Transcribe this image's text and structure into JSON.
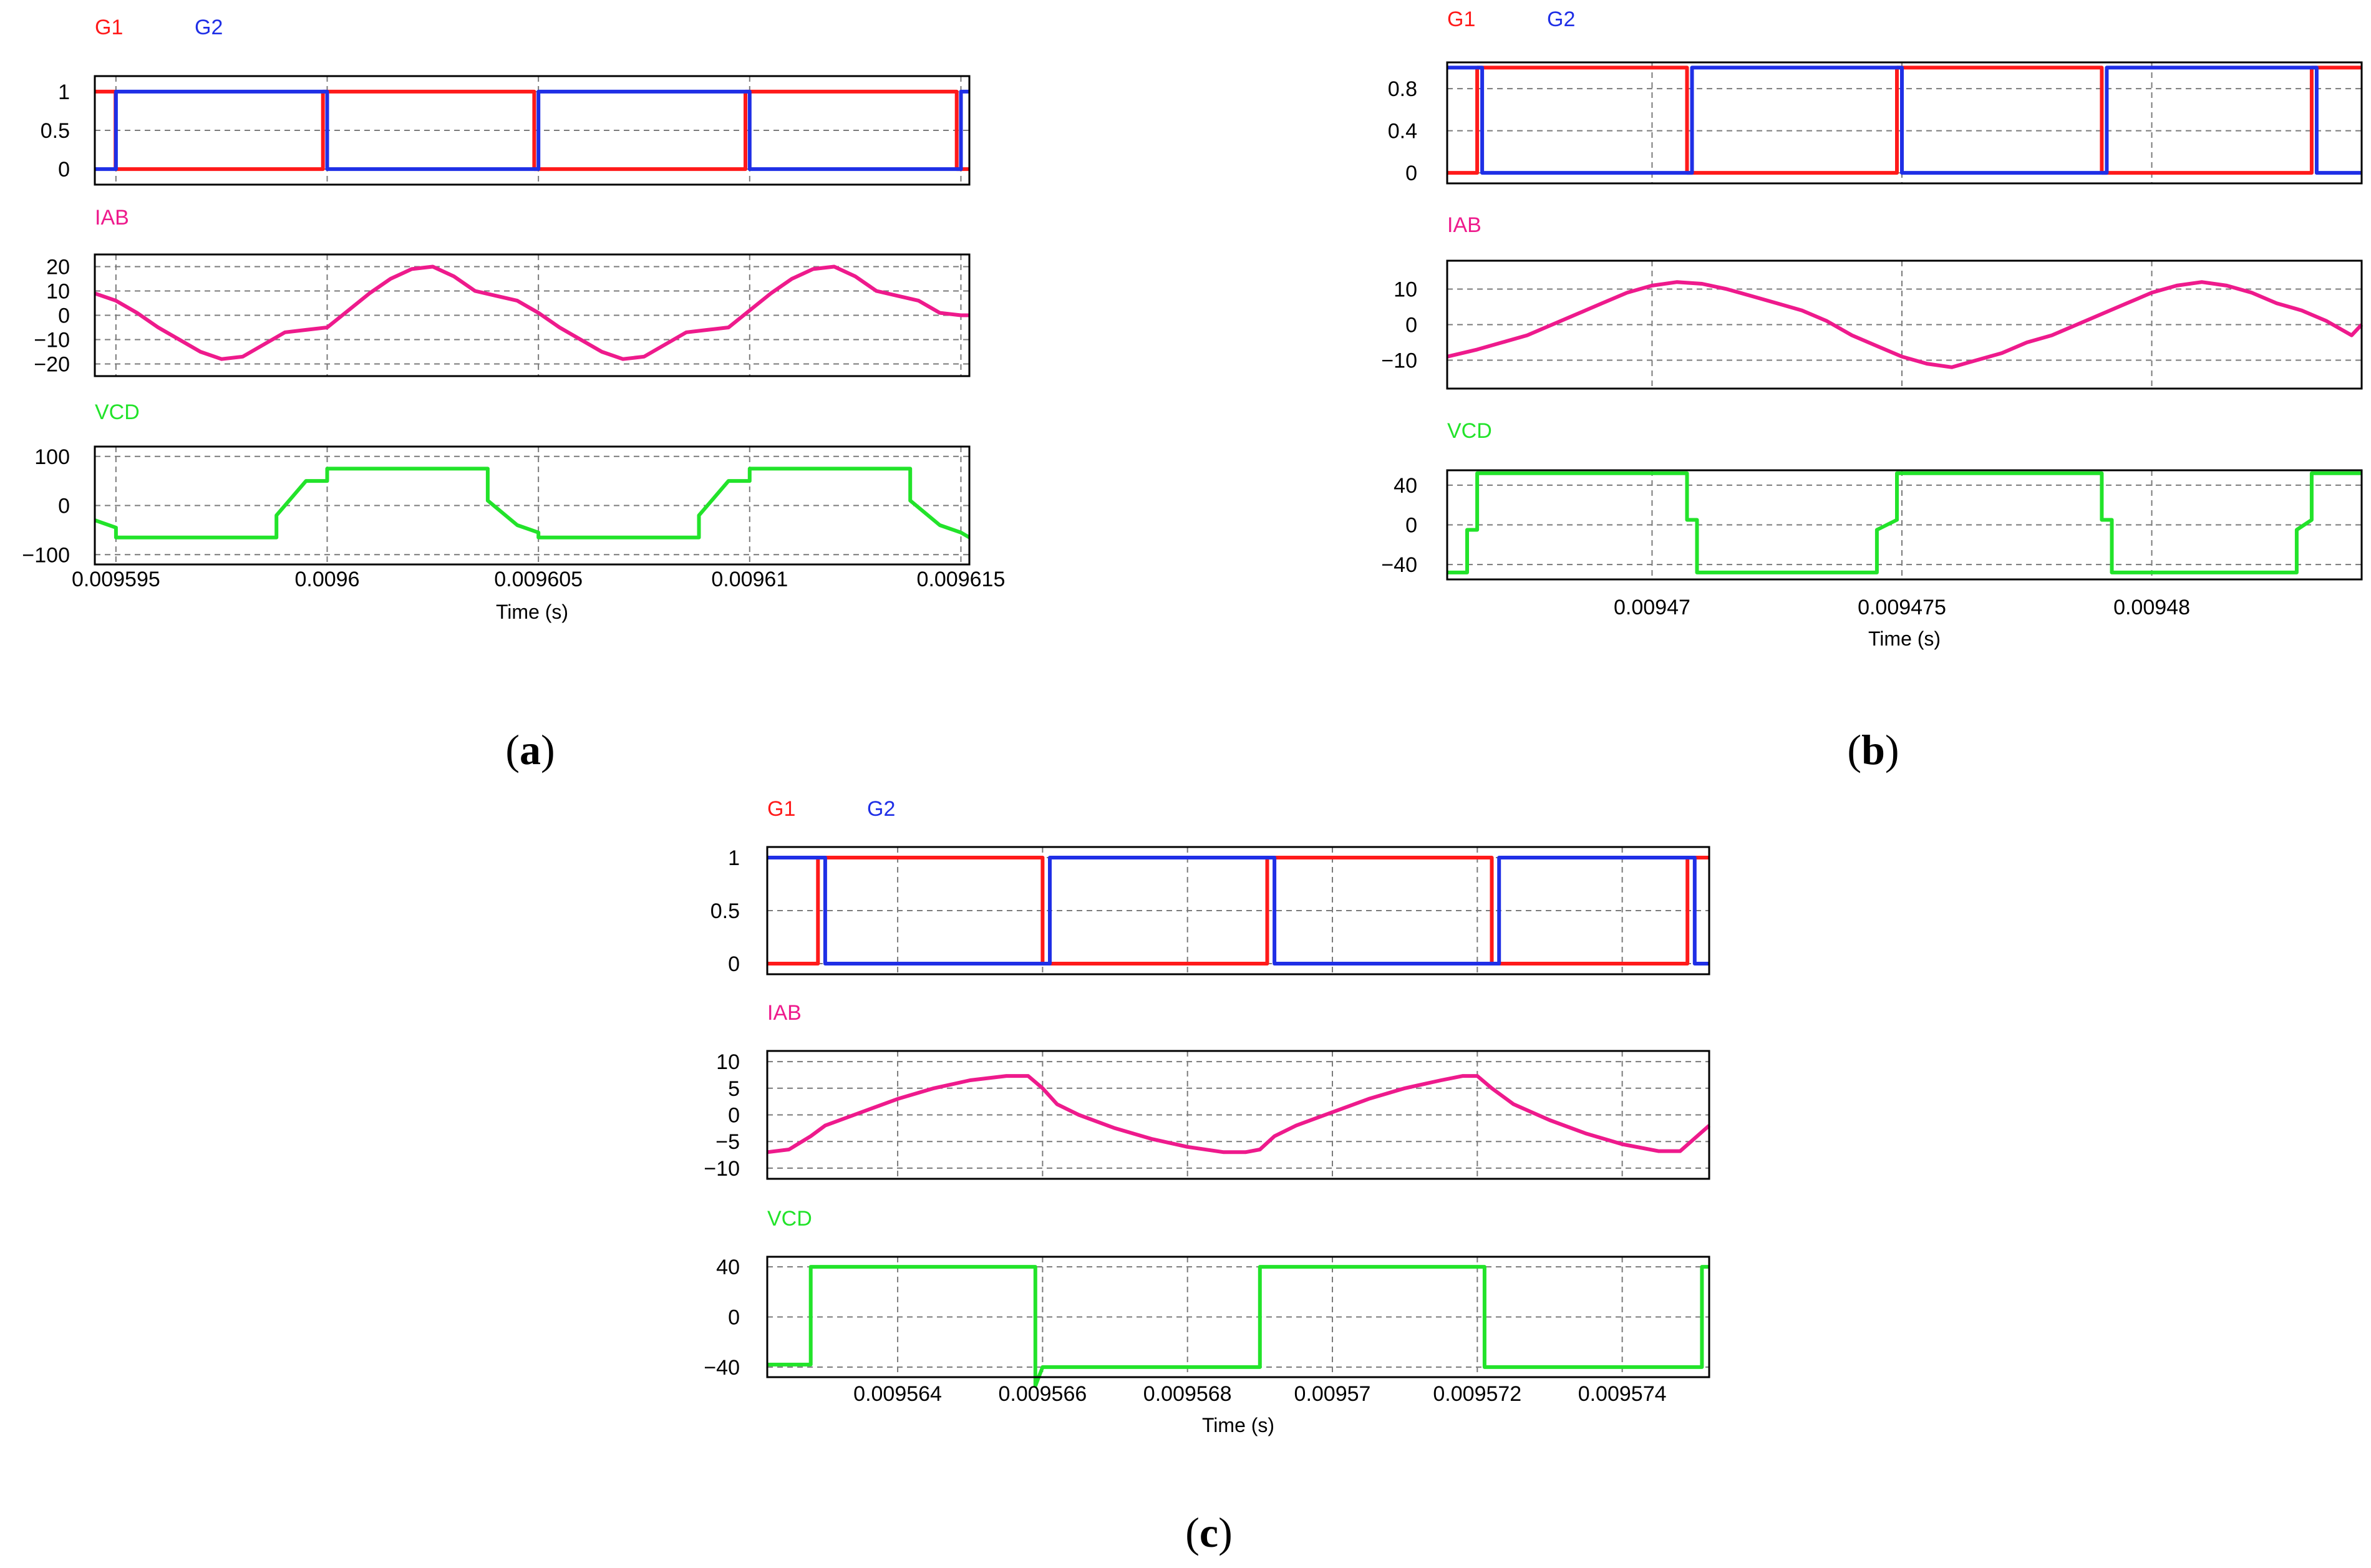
{
  "colors": {
    "g1": "#ff1a1a",
    "g2": "#1f2fe6",
    "iab": "#ee1a8c",
    "vcd": "#22e32a",
    "axis": "#000000",
    "grid": "#7a7a7a"
  },
  "xlabel": "Time (s)",
  "chart_data": [
    {
      "type": "line",
      "panel_id": "a",
      "caption": {
        "open": "(",
        "letter": "a",
        "close": ")"
      },
      "xlim": [
        0.0095945,
        0.0096152
      ],
      "x_ticks": [
        0.009595,
        0.0096,
        0.009605,
        0.00961,
        0.009615
      ],
      "x_tick_labels": [
        "0.009595",
        "0.0096",
        "0.009605",
        "0.00961",
        "0.009615"
      ],
      "xlabel": "Time (s)",
      "subplots": [
        {
          "kind": "gate",
          "ylim": [
            -0.2,
            1.2
          ],
          "y_ticks": [
            0,
            0.5,
            1
          ],
          "y_tick_labels": [
            "0",
            "0.5",
            "1"
          ],
          "legend": [
            "G1",
            "G2"
          ],
          "series": [
            {
              "name": "G1",
              "color": "#ff1a1a",
              "x": [
                0.0095945,
                0.00959499,
                0.00959499,
                0.0095999,
                0.0095999,
                0.0096049,
                0.0096049,
                0.0096099,
                0.0096099,
                0.0096149,
                0.0096149,
                0.0096152
              ],
              "y": [
                1,
                1,
                0,
                0,
                1,
                1,
                0,
                0,
                1,
                1,
                0,
                0
              ]
            },
            {
              "name": "G2",
              "color": "#1f2fe6",
              "x": [
                0.0095945,
                0.009595,
                0.009595,
                0.0096,
                0.0096,
                0.009605,
                0.009605,
                0.00961,
                0.00961,
                0.009615,
                0.009615,
                0.0096152
              ],
              "y": [
                0,
                0,
                1,
                1,
                0,
                0,
                1,
                1,
                0,
                0,
                1,
                1
              ]
            }
          ]
        },
        {
          "kind": "wave",
          "ylim": [
            -25,
            25
          ],
          "y_ticks": [
            -20,
            -10,
            0,
            10,
            20
          ],
          "y_tick_labels": [
            "−20",
            "−10",
            "0",
            "10",
            "20"
          ],
          "legend": [
            "IAB"
          ],
          "series": [
            {
              "name": "IAB",
              "color": "#ee1a8c",
              "x": [
                0.0095945,
                0.009595,
                0.0095955,
                0.009596,
                0.0095965,
                0.009597,
                0.0095975,
                0.009598,
                0.0095985,
                0.009599,
                0.0095995,
                0.0096,
                0.0096005,
                0.009601,
                0.0096015,
                0.009602,
                0.0096025,
                0.009603,
                0.0096035,
                0.009604,
                0.0096045,
                0.009605,
                0.0096055,
                0.009606,
                0.0096065,
                0.009607,
                0.0096075,
                0.009608,
                0.0096085,
                0.009609,
                0.0096095,
                0.00961,
                0.0096105,
                0.009611,
                0.0096115,
                0.009612,
                0.0096125,
                0.009613,
                0.0096135,
                0.009614,
                0.0096145,
                0.009615,
                0.0096152
              ],
              "y": [
                9,
                6,
                1,
                -5,
                -10,
                -15,
                -18,
                -17,
                -12,
                -7,
                -6,
                -5,
                2,
                9,
                15,
                19,
                20,
                16,
                10,
                8,
                6,
                1,
                -5,
                -10,
                -15,
                -18,
                -17,
                -12,
                -7,
                -6,
                -5,
                2,
                9,
                15,
                19,
                20,
                16,
                10,
                8,
                6,
                1,
                0,
                0
              ]
            }
          ]
        },
        {
          "kind": "wave",
          "ylim": [
            -120,
            120
          ],
          "y_ticks": [
            -100,
            0,
            100
          ],
          "y_tick_labels": [
            "−100",
            "0",
            "100"
          ],
          "legend": [
            "VCD"
          ],
          "series": [
            {
              "name": "VCD",
              "color": "#22e32a",
              "x": [
                0.0095945,
                0.009595,
                0.009595,
                0.0095988,
                0.0095988,
                0.0095995,
                0.0096,
                0.0096,
                0.0096038,
                0.0096038,
                0.0096045,
                0.009605,
                0.009605,
                0.0096088,
                0.0096088,
                0.0096095,
                0.00961,
                0.00961,
                0.0096138,
                0.0096138,
                0.0096145,
                0.009615,
                0.0096152
              ],
              "y": [
                -30,
                -45,
                -65,
                -65,
                -20,
                50,
                50,
                75,
                75,
                10,
                -40,
                -55,
                -65,
                -65,
                -20,
                50,
                50,
                75,
                75,
                10,
                -40,
                -55,
                -65
              ]
            }
          ]
        }
      ]
    },
    {
      "type": "line",
      "panel_id": "b",
      "caption": {
        "open": "(",
        "letter": "b",
        "close": ")"
      },
      "xlim": [
        0.0094659,
        0.0094842
      ],
      "x_ticks": [
        0.00947,
        0.009475,
        0.00948
      ],
      "x_tick_labels": [
        "0.00947",
        "0.009475",
        "0.00948"
      ],
      "xlabel": "Time (s)",
      "subplots": [
        {
          "kind": "gate",
          "ylim": [
            -0.1,
            1.05
          ],
          "y_ticks": [
            0,
            0.4,
            0.8
          ],
          "y_tick_labels": [
            "0",
            "0.4",
            "0.8"
          ],
          "legend": [
            "G1",
            "G2"
          ],
          "series": [
            {
              "name": "G1",
              "color": "#ff1a1a",
              "x": [
                0.0094659,
                0.0094665,
                0.0094665,
                0.0094707,
                0.0094707,
                0.0094749,
                0.0094749,
                0.009479,
                0.009479,
                0.0094832,
                0.0094832,
                0.0094842
              ],
              "y": [
                0,
                0,
                1,
                1,
                0,
                0,
                1,
                1,
                0,
                0,
                1,
                1
              ]
            },
            {
              "name": "G2",
              "color": "#1f2fe6",
              "x": [
                0.0094659,
                0.0094666,
                0.0094666,
                0.0094708,
                0.0094708,
                0.009475,
                0.009475,
                0.0094791,
                0.0094791,
                0.0094833,
                0.0094833,
                0.0094842
              ],
              "y": [
                1,
                1,
                0,
                0,
                1,
                1,
                0,
                0,
                1,
                1,
                0,
                0
              ]
            }
          ]
        },
        {
          "kind": "wave",
          "ylim": [
            -18,
            18
          ],
          "y_ticks": [
            -10,
            0,
            10
          ],
          "y_tick_labels": [
            "−10",
            "0",
            "10"
          ],
          "legend": [
            "IAB"
          ],
          "series": [
            {
              "name": "IAB",
              "color": "#ee1a8c",
              "x": [
                0.0094659,
                0.0094665,
                0.009467,
                0.0094675,
                0.009468,
                0.0094685,
                0.009469,
                0.0094695,
                0.00947,
                0.0094705,
                0.009471,
                0.0094715,
                0.009472,
                0.0094725,
                0.009473,
                0.0094735,
                0.009474,
                0.0094745,
                0.009475,
                0.0094755,
                0.009476,
                0.0094765,
                0.009477,
                0.0094775,
                0.009478,
                0.0094785,
                0.009479,
                0.0094795,
                0.00948,
                0.0094805,
                0.009481,
                0.0094815,
                0.009482,
                0.0094825,
                0.009483,
                0.0094835,
                0.009484,
                0.0094842
              ],
              "y": [
                -9,
                -7,
                -5,
                -3,
                0,
                3,
                6,
                9,
                11,
                12,
                11.5,
                10,
                8,
                6,
                4,
                1,
                -3,
                -6,
                -9,
                -11,
                -12,
                -10,
                -8,
                -5,
                -3,
                0,
                3,
                6,
                9,
                11,
                12,
                11,
                9,
                6,
                4,
                1,
                -3,
                0
              ]
            }
          ]
        },
        {
          "kind": "wave",
          "ylim": [
            -55,
            55
          ],
          "y_ticks": [
            -40,
            0,
            40
          ],
          "y_tick_labels": [
            "−40",
            "0",
            "40"
          ],
          "legend": [
            "VCD"
          ],
          "series": [
            {
              "name": "VCD",
              "color": "#22e32a",
              "x": [
                0.0094659,
                0.0094663,
                0.0094663,
                0.0094665,
                0.0094665,
                0.0094707,
                0.0094707,
                0.0094709,
                0.0094709,
                0.0094745,
                0.0094745,
                0.0094749,
                0.0094749,
                0.009479,
                0.009479,
                0.0094792,
                0.0094792,
                0.0094829,
                0.0094829,
                0.0094832,
                0.0094832,
                0.0094842
              ],
              "y": [
                -48,
                -48,
                -5,
                -5,
                52,
                52,
                5,
                5,
                -48,
                -48,
                -5,
                5,
                52,
                52,
                5,
                5,
                -48,
                -48,
                -5,
                5,
                52,
                52
              ]
            }
          ]
        }
      ]
    },
    {
      "type": "line",
      "panel_id": "c",
      "caption": {
        "open": "(",
        "letter": "c",
        "close": ")"
      },
      "xlim": [
        0.0095622,
        0.0095752
      ],
      "x_ticks": [
        0.009564,
        0.009566,
        0.009568,
        0.00957,
        0.009572,
        0.009574
      ],
      "x_tick_labels": [
        "0.009564",
        "0.009566",
        "0.009568",
        "0.00957",
        "0.009572",
        "0.009574"
      ],
      "xlabel": "Time (s)",
      "subplots": [
        {
          "kind": "gate",
          "ylim": [
            -0.1,
            1.1
          ],
          "y_ticks": [
            0,
            0.5,
            1
          ],
          "y_tick_labels": [
            "0",
            "0.5",
            "1"
          ],
          "legend": [
            "G1",
            "G2"
          ],
          "series": [
            {
              "name": "G1",
              "color": "#ff1a1a",
              "x": [
                0.0095622,
                0.0095629,
                0.0095629,
                0.009566,
                0.009566,
                0.0095691,
                0.0095691,
                0.0095722,
                0.0095722,
                0.0095749,
                0.0095749,
                0.0095752
              ],
              "y": [
                0,
                0,
                1,
                1,
                0,
                0,
                1,
                1,
                0,
                0,
                1,
                1
              ]
            },
            {
              "name": "G2",
              "color": "#1f2fe6",
              "x": [
                0.0095622,
                0.009563,
                0.009563,
                0.0095661,
                0.0095661,
                0.0095692,
                0.0095692,
                0.0095723,
                0.0095723,
                0.009575,
                0.009575,
                0.0095752
              ],
              "y": [
                1,
                1,
                0,
                0,
                1,
                1,
                0,
                0,
                1,
                1,
                0,
                0
              ]
            }
          ]
        },
        {
          "kind": "wave",
          "ylim": [
            -12,
            12
          ],
          "y_ticks": [
            -10,
            -5,
            0,
            5,
            10
          ],
          "y_tick_labels": [
            "−10",
            "−5",
            "0",
            "5",
            "10"
          ],
          "legend": [
            "IAB"
          ],
          "series": [
            {
              "name": "IAB",
              "color": "#ee1a8c",
              "x": [
                0.0095622,
                0.0095625,
                0.0095628,
                0.009563,
                0.0095635,
                0.009564,
                0.0095645,
                0.009565,
                0.0095655,
                0.0095658,
                0.009566,
                0.0095662,
                0.0095665,
                0.009567,
                0.0095675,
                0.009568,
                0.0095685,
                0.0095688,
                0.009569,
                0.0095692,
                0.0095695,
                0.00957,
                0.0095705,
                0.009571,
                0.0095715,
                0.0095718,
                0.009572,
                0.0095722,
                0.0095725,
                0.009573,
                0.0095735,
                0.009574,
                0.0095745,
                0.0095748,
                0.0095752
              ],
              "y": [
                -7,
                -6.5,
                -4,
                -2,
                0.5,
                3,
                5,
                6.5,
                7.3,
                7.3,
                5,
                2,
                0,
                -2.5,
                -4.5,
                -6,
                -7,
                -7,
                -6.5,
                -4,
                -2,
                0.5,
                3,
                5,
                6.5,
                7.3,
                7.3,
                5,
                2,
                -1,
                -3.5,
                -5.5,
                -6.8,
                -6.8,
                -2
              ]
            }
          ]
        },
        {
          "kind": "wave",
          "ylim": [
            -48,
            48
          ],
          "y_ticks": [
            -40,
            0,
            40
          ],
          "y_tick_labels": [
            "−40",
            "0",
            "40"
          ],
          "legend": [
            "VCD"
          ],
          "series": [
            {
              "name": "VCD",
              "color": "#22e32a",
              "x": [
                0.0095622,
                0.0095628,
                0.0095628,
                0.0095659,
                0.0095659,
                0.009566,
                0.009566,
                0.009569,
                0.009569,
                0.0095721,
                0.0095721,
                0.0095751,
                0.0095751,
                0.0095752
              ],
              "y": [
                -38,
                -38,
                40,
                40,
                -55,
                -40,
                -40,
                -40,
                40,
                40,
                -40,
                -40,
                40,
                40
              ]
            }
          ]
        }
      ]
    }
  ]
}
